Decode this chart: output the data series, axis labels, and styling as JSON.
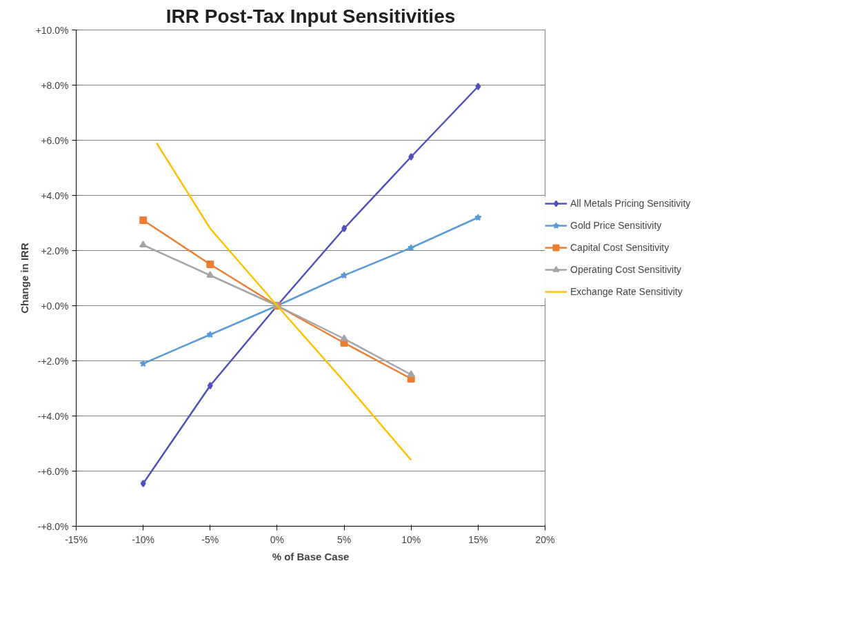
{
  "chart_data": {
    "type": "line",
    "title": "IRR Post-Tax Input Sensitivities",
    "xlabel": "% of Base Case",
    "ylabel": "Change in IRR",
    "xlim": [
      -15,
      20
    ],
    "xticks": [
      {
        "value": -15,
        "label": "-15%"
      },
      {
        "value": -10,
        "label": "-10%"
      },
      {
        "value": -5,
        "label": "-5%"
      },
      {
        "value": 0,
        "label": "0%"
      },
      {
        "value": 5,
        "label": "5%"
      },
      {
        "value": 10,
        "label": "10%"
      },
      {
        "value": 15,
        "label": "15%"
      },
      {
        "value": 20,
        "label": "20%"
      }
    ],
    "ylim": [
      -8,
      10
    ],
    "yticks": [
      {
        "value": 10,
        "label": "+10.0%"
      },
      {
        "value": 8,
        "label": "+8.0%"
      },
      {
        "value": 6,
        "label": "+6.0%"
      },
      {
        "value": 4,
        "label": "+4.0%"
      },
      {
        "value": 2,
        "label": "+2.0%"
      },
      {
        "value": 0,
        "label": "+0.0%"
      },
      {
        "value": -2,
        "label": "-+2.0%"
      },
      {
        "value": -4,
        "label": "-+4.0%"
      },
      {
        "value": -6,
        "label": "-+6.0%"
      },
      {
        "value": -8,
        "label": "-+8.0%"
      }
    ],
    "grid": "y",
    "legend": "right",
    "series": [
      {
        "name": "All Metals Pricing Sensitivity",
        "color": "#4f4fc0",
        "marker": "diamond",
        "x": [
          -10,
          -5,
          0,
          5,
          10,
          15
        ],
        "values": [
          -6.45,
          -2.9,
          0,
          2.8,
          5.4,
          7.95
        ]
      },
      {
        "name": "Gold Price Sensitivity",
        "color": "#5b9bd5",
        "marker": "star",
        "x": [
          -10,
          -5,
          0,
          5,
          10,
          15
        ],
        "values": [
          -2.1,
          -1.05,
          0,
          1.1,
          2.1,
          3.2
        ]
      },
      {
        "name": "Capital Cost Sensitivity",
        "color": "#ed7d31",
        "marker": "square",
        "x": [
          -10,
          -5,
          0,
          5,
          10
        ],
        "values": [
          3.1,
          1.5,
          0,
          -1.35,
          -2.65
        ]
      },
      {
        "name": "Operating Cost Sensitivity",
        "color": "#a5a5a5",
        "marker": "triangle",
        "x": [
          -10,
          -5,
          0,
          5,
          10
        ],
        "values": [
          2.2,
          1.1,
          0,
          -1.2,
          -2.5
        ]
      },
      {
        "name": "Exchange Rate Sensitivity",
        "color": "#ffc000",
        "marker": "none",
        "x": [
          -9,
          -5,
          0,
          5,
          10
        ],
        "values": [
          5.9,
          2.8,
          0,
          -2.75,
          -5.6
        ]
      }
    ]
  }
}
